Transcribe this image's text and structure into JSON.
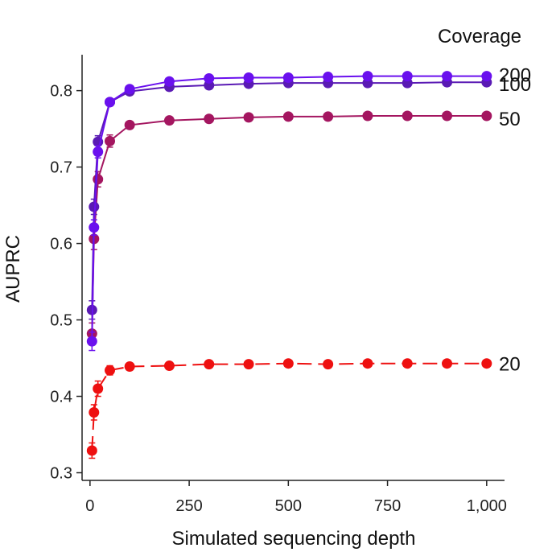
{
  "chart_data": {
    "type": "line",
    "title": "",
    "xlabel": "Simulated sequencing depth",
    "ylabel": "AUPRC",
    "xlim": [
      -20,
      1045
    ],
    "ylim": [
      0.29,
      0.847
    ],
    "xticks": [
      0,
      250,
      500,
      750,
      1000
    ],
    "xtick_labels": [
      "0",
      "250",
      "500",
      "750",
      "1,000"
    ],
    "yticks": [
      0.3,
      0.4,
      0.5,
      0.6,
      0.7,
      0.8
    ],
    "ytick_labels": [
      "0.3",
      "0.4",
      "0.5",
      "0.6",
      "0.7",
      "0.8"
    ],
    "grid": false,
    "legend_title": "Coverage",
    "legend_placement": "right, at line ends",
    "x": [
      5,
      10,
      20,
      50,
      100,
      200,
      300,
      400,
      500,
      600,
      700,
      800,
      900,
      1000
    ],
    "series": [
      {
        "name": "200",
        "color": "#6a10ee",
        "dashed": false,
        "values": [
          0.472,
          0.621,
          0.72,
          0.785,
          0.802,
          0.812,
          0.816,
          0.817,
          0.817,
          0.818,
          0.819,
          0.819,
          0.819,
          0.819
        ],
        "errors": [
          0.012,
          0.01,
          0.008,
          0.004,
          0.003,
          0.002,
          0.002,
          0.002,
          0.002,
          0.002,
          0.002,
          0.002,
          0.002,
          0.002
        ]
      },
      {
        "name": "100",
        "color": "#5a1ab4",
        "dashed": false,
        "values": [
          0.513,
          0.648,
          0.733,
          0.785,
          0.799,
          0.805,
          0.807,
          0.809,
          0.81,
          0.81,
          0.81,
          0.81,
          0.811,
          0.811
        ],
        "errors": [
          0.012,
          0.01,
          0.008,
          0.004,
          0.003,
          0.002,
          0.002,
          0.002,
          0.002,
          0.002,
          0.002,
          0.002,
          0.002,
          0.002
        ]
      },
      {
        "name": "50",
        "color": "#a41660",
        "dashed": false,
        "values": [
          0.482,
          0.606,
          0.684,
          0.734,
          0.755,
          0.761,
          0.763,
          0.765,
          0.766,
          0.766,
          0.767,
          0.767,
          0.767,
          0.767
        ],
        "errors": [
          0.014,
          0.014,
          0.01,
          0.008,
          0.004,
          0.003,
          0.002,
          0.002,
          0.002,
          0.002,
          0.002,
          0.002,
          0.002,
          0.002
        ]
      },
      {
        "name": "20",
        "color": "#ee1010",
        "dashed": true,
        "values": [
          0.329,
          0.379,
          0.41,
          0.434,
          0.439,
          0.44,
          0.442,
          0.442,
          0.443,
          0.442,
          0.443,
          0.443,
          0.443,
          0.443
        ],
        "errors": [
          0.01,
          0.01,
          0.01,
          0.006,
          0.004,
          0.003,
          0.002,
          0.002,
          0.002,
          0.002,
          0.002,
          0.002,
          0.002,
          0.002
        ]
      }
    ]
  }
}
